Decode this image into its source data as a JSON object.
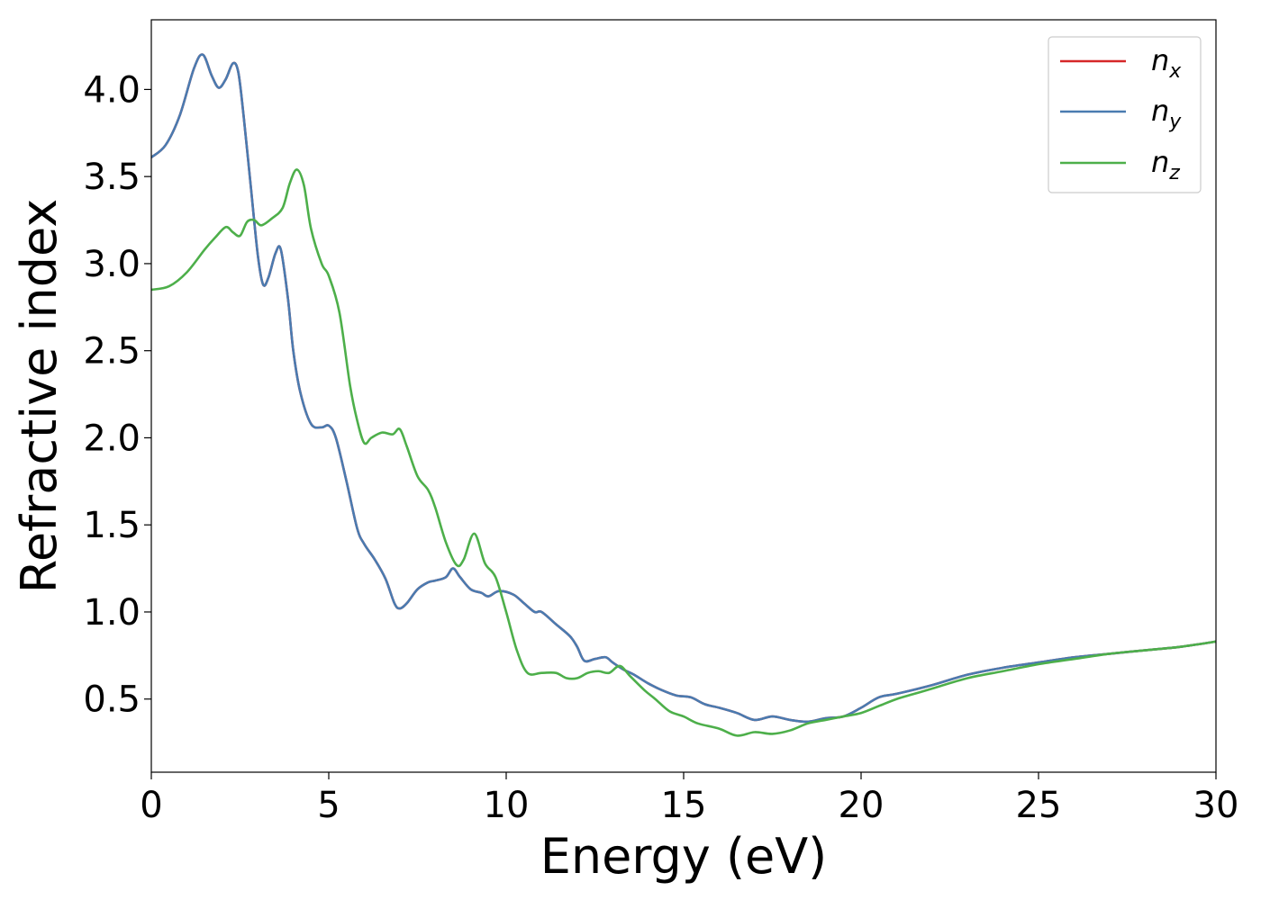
{
  "chart_data": {
    "type": "line",
    "xlabel": "Energy (eV)",
    "ylabel": "Refractive index",
    "xlim": [
      0,
      30
    ],
    "ylim": [
      0.08,
      4.4
    ],
    "xticks": [
      0,
      5,
      10,
      15,
      20,
      25,
      30
    ],
    "yticks": [
      0.5,
      1.0,
      1.5,
      2.0,
      2.5,
      3.0,
      3.5,
      4.0
    ],
    "grid": false,
    "legend_position": "top-right",
    "series": [
      {
        "name": "n",
        "subscript": "x",
        "color": "#d62728",
        "x": [
          0,
          0.4,
          0.8,
          1.2,
          1.45,
          1.7,
          1.9,
          2.1,
          2.3,
          2.45,
          2.6,
          2.8,
          3.0,
          3.15,
          3.3,
          3.5,
          3.65,
          3.85,
          4.0,
          4.2,
          4.5,
          4.8,
          5.0,
          5.2,
          5.5,
          5.8,
          6.0,
          6.3,
          6.6,
          6.85,
          7.0,
          7.2,
          7.5,
          7.8,
          8.0,
          8.3,
          8.5,
          8.7,
          9.0,
          9.3,
          9.5,
          9.8,
          10.2,
          10.5,
          10.8,
          11.0,
          11.4,
          11.8,
          12.0,
          12.2,
          12.5,
          12.8,
          13.0,
          13.3,
          13.6,
          14.0,
          14.4,
          14.8,
          15.2,
          15.6,
          16.0,
          16.5,
          17.0,
          17.5,
          18.0,
          18.5,
          19.0,
          19.5,
          20.0,
          20.5,
          21.0,
          22.0,
          23.0,
          24.0,
          25.0,
          26.0,
          27.0,
          28.0,
          29.0,
          30.0
        ],
        "y": [
          3.61,
          3.68,
          3.85,
          4.12,
          4.2,
          4.08,
          4.01,
          4.06,
          4.15,
          4.1,
          3.85,
          3.45,
          3.05,
          2.88,
          2.92,
          3.06,
          3.08,
          2.8,
          2.5,
          2.26,
          2.08,
          2.06,
          2.07,
          2.0,
          1.75,
          1.48,
          1.39,
          1.3,
          1.19,
          1.05,
          1.02,
          1.05,
          1.13,
          1.17,
          1.18,
          1.2,
          1.25,
          1.2,
          1.13,
          1.11,
          1.09,
          1.12,
          1.1,
          1.05,
          1.0,
          1.0,
          0.93,
          0.86,
          0.8,
          0.72,
          0.73,
          0.74,
          0.71,
          0.67,
          0.64,
          0.59,
          0.55,
          0.52,
          0.51,
          0.47,
          0.45,
          0.42,
          0.38,
          0.4,
          0.38,
          0.37,
          0.39,
          0.4,
          0.45,
          0.51,
          0.53,
          0.58,
          0.64,
          0.68,
          0.71,
          0.74,
          0.76,
          0.78,
          0.8,
          0.83
        ]
      },
      {
        "name": "n",
        "subscript": "y",
        "color": "#4a7bb0",
        "x": [
          0,
          0.4,
          0.8,
          1.2,
          1.45,
          1.7,
          1.9,
          2.1,
          2.3,
          2.45,
          2.6,
          2.8,
          3.0,
          3.15,
          3.3,
          3.5,
          3.65,
          3.85,
          4.0,
          4.2,
          4.5,
          4.8,
          5.0,
          5.2,
          5.5,
          5.8,
          6.0,
          6.3,
          6.6,
          6.85,
          7.0,
          7.2,
          7.5,
          7.8,
          8.0,
          8.3,
          8.5,
          8.7,
          9.0,
          9.3,
          9.5,
          9.8,
          10.2,
          10.5,
          10.8,
          11.0,
          11.4,
          11.8,
          12.0,
          12.2,
          12.5,
          12.8,
          13.0,
          13.3,
          13.6,
          14.0,
          14.4,
          14.8,
          15.2,
          15.6,
          16.0,
          16.5,
          17.0,
          17.5,
          18.0,
          18.5,
          19.0,
          19.5,
          20.0,
          20.5,
          21.0,
          22.0,
          23.0,
          24.0,
          25.0,
          26.0,
          27.0,
          28.0,
          29.0,
          30.0
        ],
        "y": [
          3.61,
          3.68,
          3.85,
          4.12,
          4.2,
          4.08,
          4.01,
          4.06,
          4.15,
          4.1,
          3.85,
          3.45,
          3.05,
          2.88,
          2.92,
          3.06,
          3.08,
          2.8,
          2.5,
          2.26,
          2.08,
          2.06,
          2.07,
          2.0,
          1.75,
          1.48,
          1.39,
          1.3,
          1.19,
          1.05,
          1.02,
          1.05,
          1.13,
          1.17,
          1.18,
          1.2,
          1.25,
          1.2,
          1.13,
          1.11,
          1.09,
          1.12,
          1.1,
          1.05,
          1.0,
          1.0,
          0.93,
          0.86,
          0.8,
          0.72,
          0.73,
          0.74,
          0.71,
          0.67,
          0.64,
          0.59,
          0.55,
          0.52,
          0.51,
          0.47,
          0.45,
          0.42,
          0.38,
          0.4,
          0.38,
          0.37,
          0.39,
          0.4,
          0.45,
          0.51,
          0.53,
          0.58,
          0.64,
          0.68,
          0.71,
          0.74,
          0.76,
          0.78,
          0.8,
          0.83
        ]
      },
      {
        "name": "n",
        "subscript": "z",
        "color": "#4daf4a",
        "x": [
          0,
          0.5,
          1.0,
          1.5,
          1.8,
          2.1,
          2.3,
          2.5,
          2.7,
          2.9,
          3.1,
          3.4,
          3.7,
          3.9,
          4.1,
          4.3,
          4.5,
          4.8,
          5.0,
          5.3,
          5.6,
          5.8,
          6.0,
          6.2,
          6.5,
          6.8,
          7.0,
          7.2,
          7.5,
          7.8,
          8.0,
          8.3,
          8.6,
          8.8,
          9.1,
          9.4,
          9.7,
          10.0,
          10.3,
          10.6,
          11.0,
          11.4,
          11.7,
          12.0,
          12.3,
          12.6,
          12.9,
          13.2,
          13.5,
          13.9,
          14.2,
          14.6,
          15.0,
          15.4,
          16.0,
          16.5,
          17.0,
          17.5,
          18.0,
          18.5,
          19.0,
          19.5,
          20.0,
          20.5,
          21.0,
          21.5,
          22.0,
          23.0,
          24.0,
          25.0,
          26.0,
          27.0,
          28.0,
          29.0,
          30.0
        ],
        "y": [
          2.85,
          2.87,
          2.95,
          3.08,
          3.15,
          3.21,
          3.18,
          3.16,
          3.24,
          3.25,
          3.22,
          3.26,
          3.32,
          3.46,
          3.54,
          3.45,
          3.2,
          3.0,
          2.93,
          2.72,
          2.3,
          2.1,
          1.97,
          2.0,
          2.03,
          2.02,
          2.05,
          1.95,
          1.78,
          1.7,
          1.6,
          1.4,
          1.27,
          1.3,
          1.45,
          1.28,
          1.2,
          1.0,
          0.78,
          0.65,
          0.65,
          0.65,
          0.62,
          0.62,
          0.65,
          0.66,
          0.65,
          0.69,
          0.63,
          0.55,
          0.5,
          0.43,
          0.4,
          0.36,
          0.33,
          0.29,
          0.31,
          0.3,
          0.32,
          0.36,
          0.38,
          0.4,
          0.42,
          0.46,
          0.5,
          0.53,
          0.56,
          0.62,
          0.66,
          0.7,
          0.73,
          0.76,
          0.78,
          0.8,
          0.83
        ]
      }
    ]
  }
}
